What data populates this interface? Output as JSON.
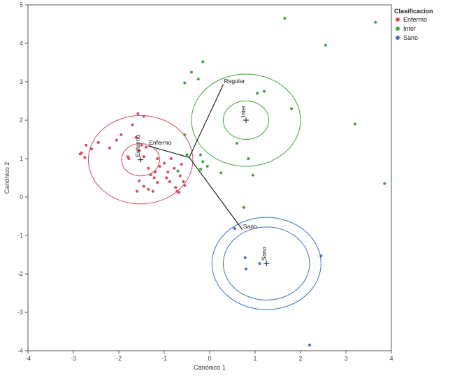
{
  "chart_data": {
    "type": "scatter",
    "title": "",
    "xlabel": "Canónico 1",
    "ylabel": "Canónico 2",
    "xlim": [
      -4,
      4
    ],
    "ylim": [
      -4,
      5
    ],
    "xticks": [
      -4,
      -3,
      -2,
      -1,
      0,
      1,
      2,
      3,
      4
    ],
    "yticks": [
      -4,
      -3,
      -2,
      -1,
      0,
      1,
      2,
      3,
      4,
      5
    ],
    "grid": false,
    "legend": {
      "title": "Clasificacion",
      "position": "top-right",
      "entries": [
        {
          "name": "Enfermo",
          "color": "#d94a5a"
        },
        {
          "name": "Inter",
          "color": "#3aa83a"
        },
        {
          "name": "Sano",
          "color": "#3f6fcf"
        }
      ]
    },
    "series": [
      {
        "name": "Enfermo",
        "color": "#d94a5a",
        "points": [
          [
            -2.85,
            1.12
          ],
          [
            -2.82,
            1.15
          ],
          [
            -2.75,
            1.03
          ],
          [
            -2.72,
            1.35
          ],
          [
            -2.6,
            1.25
          ],
          [
            -2.45,
            1.42
          ],
          [
            -2.2,
            1.28
          ],
          [
            -2.05,
            1.48
          ],
          [
            -1.95,
            1.62
          ],
          [
            -1.8,
            1.05
          ],
          [
            -1.78,
            1.0
          ],
          [
            -1.7,
            1.88
          ],
          [
            -1.62,
            1.55
          ],
          [
            -1.58,
            2.17
          ],
          [
            -1.55,
            1.2
          ],
          [
            -1.5,
            1.35
          ],
          [
            -1.45,
            2.1
          ],
          [
            -1.45,
            1.05
          ],
          [
            -1.4,
            1.3
          ],
          [
            -1.35,
            0.75
          ],
          [
            -1.3,
            0.58
          ],
          [
            -1.22,
            0.5
          ],
          [
            -1.15,
            1.0
          ],
          [
            -1.1,
            0.8
          ],
          [
            -1.2,
            0.65
          ],
          [
            -1.0,
            0.88
          ],
          [
            -0.95,
            0.5
          ],
          [
            -0.92,
            0.65
          ],
          [
            -0.88,
            0.4
          ],
          [
            -0.85,
            1.0
          ],
          [
            -0.78,
            0.75
          ],
          [
            -0.75,
            0.25
          ],
          [
            -0.72,
            0.15
          ],
          [
            -0.68,
            0.12
          ],
          [
            -0.65,
            0.55
          ],
          [
            -0.62,
            0.85
          ],
          [
            -0.58,
            0.4
          ],
          [
            -0.55,
            0.3
          ],
          [
            -1.6,
            0.15
          ],
          [
            -1.55,
            0.42
          ],
          [
            -1.45,
            0.28
          ],
          [
            -1.35,
            0.2
          ],
          [
            -1.25,
            0.15
          ],
          [
            -1.15,
            0.38
          ]
        ]
      },
      {
        "name": "Inter",
        "color": "#3aa83a",
        "points": [
          [
            1.65,
            4.65
          ],
          [
            3.65,
            4.55
          ],
          [
            2.55,
            3.95
          ],
          [
            -0.15,
            3.52
          ],
          [
            -0.4,
            3.25
          ],
          [
            -0.25,
            3.07
          ],
          [
            -0.55,
            2.97
          ],
          [
            1.05,
            2.7
          ],
          [
            1.2,
            2.75
          ],
          [
            1.8,
            2.3
          ],
          [
            3.2,
            1.9
          ],
          [
            0.6,
            1.4
          ],
          [
            0.85,
            1.0
          ],
          [
            0.95,
            0.57
          ],
          [
            0.25,
            0.63
          ],
          [
            -0.05,
            0.8
          ],
          [
            -0.2,
            1.1
          ],
          [
            -0.15,
            0.92
          ],
          [
            -0.2,
            0.72
          ],
          [
            -0.5,
            1.1
          ],
          [
            -0.55,
            1.62
          ],
          [
            -0.7,
            0.68
          ],
          [
            0.75,
            -0.27
          ],
          [
            3.85,
            0.35
          ]
        ]
      },
      {
        "name": "Sano",
        "color": "#3f6fcf",
        "points": [
          [
            0.55,
            -0.82
          ],
          [
            0.78,
            -1.58
          ],
          [
            0.8,
            -1.87
          ],
          [
            1.1,
            -1.73
          ],
          [
            2.45,
            -1.53
          ],
          [
            2.2,
            -3.85
          ]
        ]
      }
    ],
    "group_means": [
      {
        "name": "Enfermo",
        "x": -1.52,
        "y": 0.97,
        "color": "#d94a5a",
        "inner_radius": 0.42,
        "outer_radius": 1.15
      },
      {
        "name": "Inter",
        "x": 0.8,
        "y": 2.0,
        "color": "#3aa83a",
        "inner_radius": 0.5,
        "outer_radius": 1.2
      },
      {
        "name": "Sano",
        "x": 1.25,
        "y": -1.73,
        "color": "#3f6fcf",
        "inner_radius": 0.95,
        "outer_radius": 1.2
      }
    ],
    "biplot_rays": [
      {
        "label": "Regular",
        "x0": -0.45,
        "y0": 1.03,
        "x1": 0.3,
        "y1": 2.93
      },
      {
        "label": "Enfermo",
        "x0": -0.45,
        "y0": 1.03,
        "x1": -1.35,
        "y1": 1.33
      },
      {
        "label": "Sano",
        "x0": -0.45,
        "y0": 1.03,
        "x1": 0.72,
        "y1": -0.85
      }
    ]
  }
}
